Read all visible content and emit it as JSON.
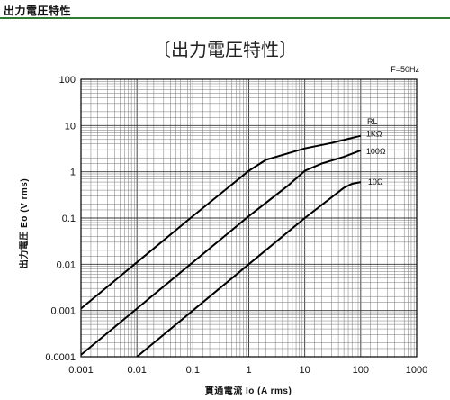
{
  "header": {
    "title": "出力電圧特性"
  },
  "chart_data": {
    "type": "line",
    "title": "〔出力電圧特性〕",
    "annotation": "F=50Hz",
    "legend_title": "RL",
    "xlabel": "貫通電流 Io (A rms)",
    "ylabel": "出力電圧 Eo (V rms)",
    "xscale": "log",
    "yscale": "log",
    "xlim": [
      0.001,
      1000
    ],
    "ylim": [
      0.0001,
      100
    ],
    "grid": true,
    "x_ticks": [
      "0.001",
      "0.01",
      "0.1",
      "1",
      "10",
      "100",
      "1000"
    ],
    "y_ticks": [
      "0.0001",
      "0.001",
      "0.01",
      "0.1",
      "1",
      "10",
      "100"
    ],
    "series": [
      {
        "name": "1KΩ",
        "points": [
          [
            0.001,
            0.0011
          ],
          [
            0.01,
            0.011
          ],
          [
            0.1,
            0.11
          ],
          [
            1,
            1.05
          ],
          [
            2,
            1.8
          ],
          [
            5,
            2.5
          ],
          [
            10,
            3.2
          ],
          [
            30,
            4.2
          ],
          [
            100,
            6.0
          ]
        ]
      },
      {
        "name": "100Ω",
        "points": [
          [
            0.001,
            0.00011
          ],
          [
            0.01,
            0.0011
          ],
          [
            0.1,
            0.011
          ],
          [
            1,
            0.11
          ],
          [
            5,
            0.5
          ],
          [
            10,
            1.05
          ],
          [
            20,
            1.5
          ],
          [
            50,
            2.1
          ],
          [
            100,
            2.9
          ]
        ]
      },
      {
        "name": "10Ω",
        "points": [
          [
            0.01,
            0.0001
          ],
          [
            0.1,
            0.001
          ],
          [
            1,
            0.01
          ],
          [
            10,
            0.1
          ],
          [
            50,
            0.45
          ],
          [
            70,
            0.55
          ],
          [
            100,
            0.6
          ]
        ]
      }
    ]
  }
}
